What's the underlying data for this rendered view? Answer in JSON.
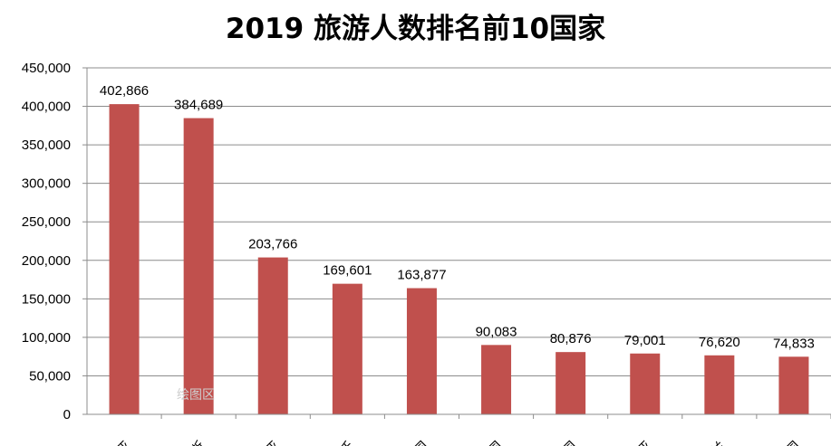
{
  "chart_data": {
    "type": "bar",
    "title": "2019 旅游人数排名前10国家",
    "categories": [
      "亚",
      "斯",
      "亚",
      "沃",
      "国",
      "国",
      "国",
      "亚",
      "兰",
      "国"
    ],
    "values": [
      402866,
      384689,
      203766,
      169601,
      163877,
      90083,
      80876,
      79001,
      76620,
      74833
    ],
    "value_labels": [
      "402,866",
      "384,689",
      "203,766",
      "169,601",
      "163,877",
      "90,083",
      "80,876",
      "79,001",
      "76,620",
      "74,833"
    ],
    "ylim": [
      0,
      450000
    ],
    "yticks": [
      "0",
      "50,000",
      "100,000",
      "150,000",
      "200,000",
      "250,000",
      "300,000",
      "350,000",
      "400,000",
      "450,000"
    ],
    "grid": true,
    "bar_color": "#C0504D",
    "xlabel": "",
    "ylabel": ""
  },
  "watermark": "绘图区"
}
